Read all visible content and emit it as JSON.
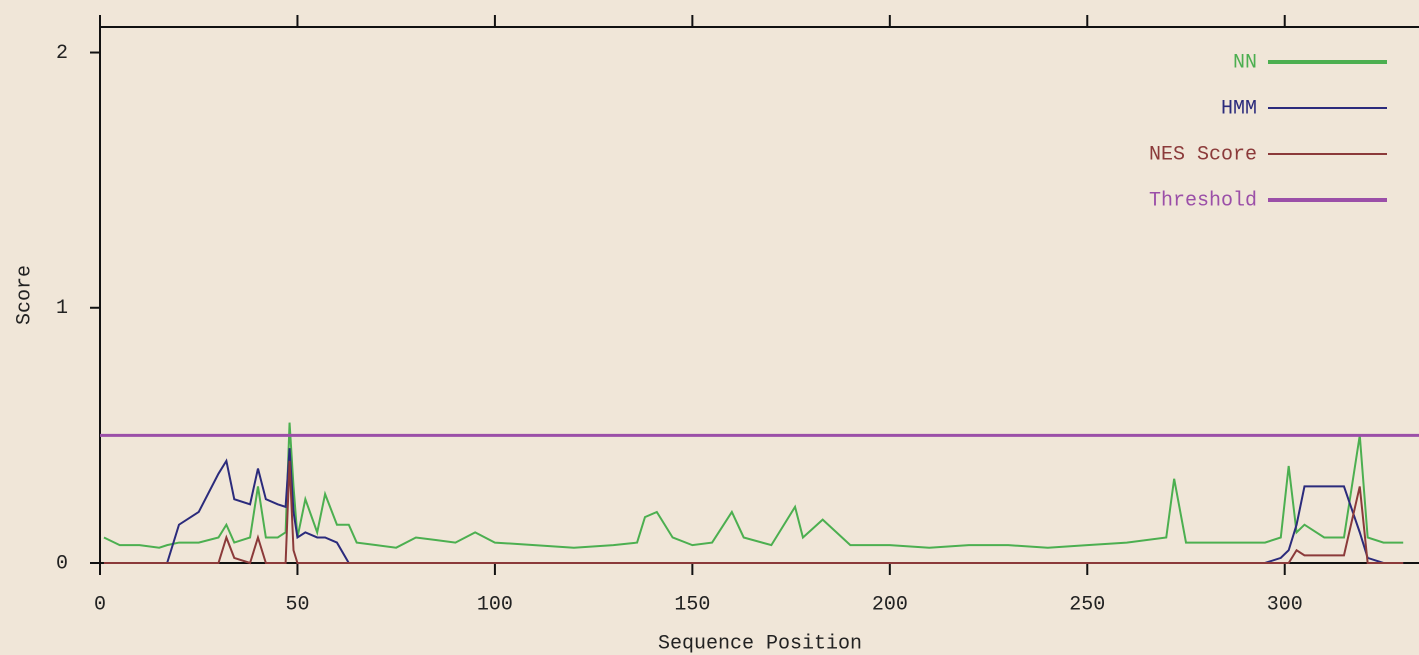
{
  "chart_data": {
    "type": "line",
    "xlabel": "Sequence Position",
    "ylabel": "Score",
    "xlim": [
      0,
      334
    ],
    "ylim": [
      0,
      2.1
    ],
    "xticks": [
      0,
      50,
      100,
      150,
      200,
      250,
      300
    ],
    "yticks": [
      0,
      1,
      2
    ],
    "legend": "upper right",
    "x": [
      1,
      5,
      10,
      15,
      17,
      20,
      25,
      30,
      32,
      34,
      38,
      40,
      42,
      45,
      47,
      48,
      49,
      50,
      52,
      55,
      57,
      60,
      63,
      65,
      70,
      75,
      80,
      85,
      90,
      95,
      100,
      110,
      120,
      130,
      136,
      138,
      141,
      145,
      150,
      155,
      160,
      163,
      170,
      176,
      178,
      183,
      190,
      200,
      210,
      220,
      230,
      240,
      250,
      260,
      270,
      272,
      275,
      280,
      290,
      295,
      299,
      301,
      303,
      305,
      310,
      315,
      319,
      321,
      325,
      330
    ],
    "series": [
      {
        "name": "NN",
        "color": "#4caf50",
        "values": [
          0.1,
          0.07,
          0.07,
          0.06,
          0.07,
          0.08,
          0.08,
          0.1,
          0.15,
          0.08,
          0.1,
          0.3,
          0.1,
          0.1,
          0.12,
          0.55,
          0.3,
          0.1,
          0.25,
          0.12,
          0.27,
          0.15,
          0.15,
          0.08,
          0.07,
          0.06,
          0.1,
          0.09,
          0.08,
          0.12,
          0.08,
          0.07,
          0.06,
          0.07,
          0.08,
          0.18,
          0.2,
          0.1,
          0.07,
          0.08,
          0.2,
          0.1,
          0.07,
          0.22,
          0.1,
          0.17,
          0.07,
          0.07,
          0.06,
          0.07,
          0.07,
          0.06,
          0.07,
          0.08,
          0.1,
          0.33,
          0.08,
          0.08,
          0.08,
          0.08,
          0.1,
          0.38,
          0.12,
          0.15,
          0.1,
          0.1,
          0.5,
          0.1,
          0.08,
          0.08
        ]
      },
      {
        "name": "HMM",
        "color": "#2b2b7c",
        "values": [
          0,
          0,
          0,
          0,
          0,
          0.15,
          0.2,
          0.35,
          0.4,
          0.25,
          0.23,
          0.37,
          0.25,
          0.23,
          0.22,
          0.45,
          0.2,
          0.1,
          0.12,
          0.1,
          0.1,
          0.08,
          0,
          0,
          0,
          0,
          0,
          0,
          0,
          0,
          0,
          0,
          0,
          0,
          0,
          0,
          0,
          0,
          0,
          0,
          0,
          0,
          0,
          0,
          0,
          0,
          0,
          0,
          0,
          0,
          0,
          0,
          0,
          0,
          0,
          0,
          0,
          0,
          0,
          0,
          0.02,
          0.05,
          0.15,
          0.3,
          0.3,
          0.3,
          0.12,
          0.02,
          0,
          0
        ]
      },
      {
        "name": "NES Score",
        "color": "#8b3a3a",
        "values": [
          0,
          0,
          0,
          0,
          0,
          0,
          0,
          0,
          0.1,
          0.02,
          0,
          0.1,
          0,
          0,
          0,
          0.4,
          0.05,
          0,
          0,
          0,
          0,
          0,
          0,
          0,
          0,
          0,
          0,
          0,
          0,
          0,
          0,
          0,
          0,
          0,
          0,
          0,
          0,
          0,
          0,
          0,
          0,
          0,
          0,
          0,
          0,
          0,
          0,
          0,
          0,
          0,
          0,
          0,
          0,
          0,
          0,
          0,
          0,
          0,
          0,
          0,
          0,
          0,
          0.05,
          0.03,
          0.03,
          0.03,
          0.3,
          0,
          0,
          0
        ]
      },
      {
        "name": "Threshold",
        "color": "#9b4fa8",
        "x": [
          0,
          334
        ],
        "values": [
          0.5,
          0.5
        ]
      }
    ]
  }
}
